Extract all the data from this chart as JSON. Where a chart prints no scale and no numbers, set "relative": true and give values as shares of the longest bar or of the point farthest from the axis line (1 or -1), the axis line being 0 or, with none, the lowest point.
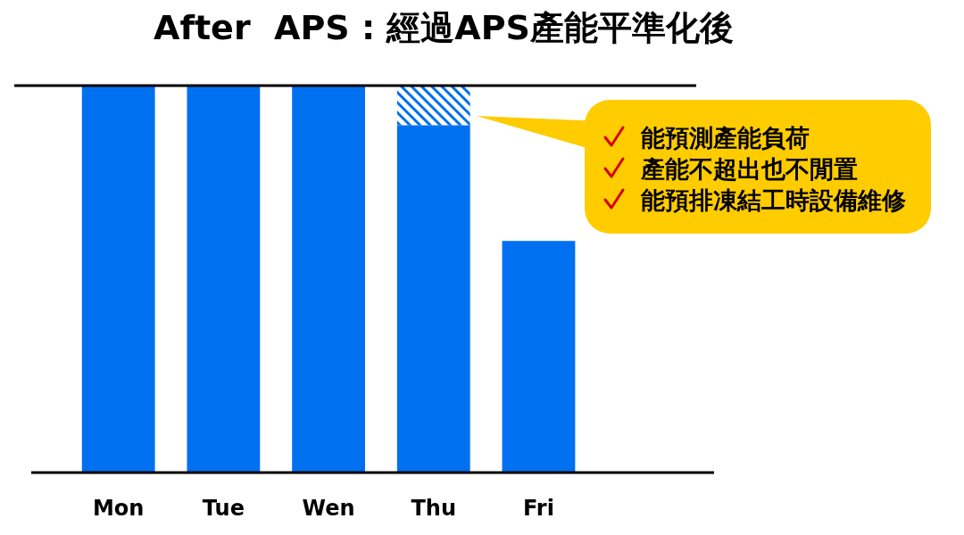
{
  "chart_data": {
    "type": "bar",
    "title": "After  APS : 經過APS產能平準化後",
    "categories": [
      "Mon",
      "Tue",
      "Wen",
      "Thu",
      "Fri"
    ],
    "stacked": true,
    "relative": true,
    "series": [
      {
        "color": "#0070f0",
        "values": [
          1,
          1,
          1,
          0.9,
          0.6
        ]
      },
      {
        "color": "#0070f0",
        "values": [
          null,
          null,
          null,
          0.1,
          null
        ]
      }
    ],
    "ref_lines": [
      {
        "axis": "y",
        "value": 1,
        "color": "#000000"
      }
    ],
    "annotations": [
      "能預測產能負荷",
      "產能不超出也不閒置",
      "能預排凍結工時設備維修"
    ]
  }
}
